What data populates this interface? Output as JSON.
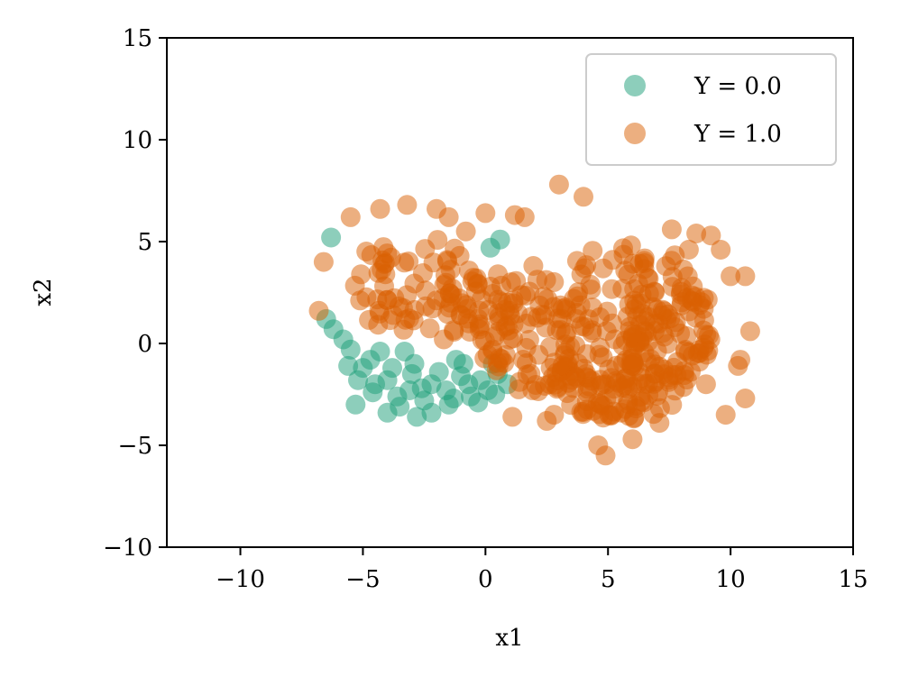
{
  "chart_data": {
    "type": "scatter",
    "title": "",
    "xlabel": "x1",
    "ylabel": "x2",
    "xlim": [
      -13,
      15
    ],
    "ylim": [
      -10,
      15
    ],
    "xticks": [
      -10,
      -5,
      0,
      5,
      10,
      15
    ],
    "yticks": [
      -10,
      -5,
      0,
      5,
      10,
      15
    ],
    "xtick_labels": [
      "−10",
      "−5",
      "0",
      "5",
      "10",
      "15"
    ],
    "ytick_labels": [
      "−10",
      "−5",
      "0",
      "5",
      "10",
      "15"
    ],
    "grid": false,
    "legend_position": "top-right",
    "series": [
      {
        "name": "Y = 0.0",
        "color": "#1b9e77",
        "alpha": 0.5,
        "points": [
          [
            -6.3,
            5.2
          ],
          [
            -6.5,
            1.2
          ],
          [
            -6.2,
            0.7
          ],
          [
            -5.8,
            0.2
          ],
          [
            -5.5,
            -0.3
          ],
          [
            -5.6,
            -1.1
          ],
          [
            -5.2,
            -1.8
          ],
          [
            -5.3,
            -3.0
          ],
          [
            -4.6,
            -2.4
          ],
          [
            -4.0,
            -3.4
          ],
          [
            -3.5,
            -3.1
          ],
          [
            -2.8,
            -3.6
          ],
          [
            -2.2,
            -3.4
          ],
          [
            -1.5,
            -3.0
          ],
          [
            -0.6,
            -2.6
          ],
          [
            -0.3,
            -2.9
          ],
          [
            0.4,
            -2.5
          ],
          [
            0.9,
            -2.0
          ],
          [
            -1.2,
            -0.8
          ],
          [
            -3.3,
            -0.4
          ],
          [
            0.6,
            5.1
          ],
          [
            0.2,
            4.7
          ],
          [
            -4.7,
            -0.8
          ],
          [
            -3.0,
            -1.5
          ],
          [
            -2.2,
            -2.0
          ],
          [
            -1.0,
            -1.6
          ],
          [
            -0.2,
            -1.8
          ],
          [
            0.3,
            -1.0
          ],
          [
            -4.0,
            -1.8
          ],
          [
            -3.6,
            -2.6
          ],
          [
            -2.5,
            -2.8
          ],
          [
            -1.6,
            -2.3
          ],
          [
            -0.7,
            -2.0
          ],
          [
            0.5,
            -1.5
          ],
          [
            -5.0,
            -1.2
          ],
          [
            -4.5,
            -2.0
          ],
          [
            -3.1,
            -2.3
          ],
          [
            -1.9,
            -1.4
          ],
          [
            -0.9,
            -1.0
          ],
          [
            0.1,
            -2.3
          ],
          [
            -2.9,
            -1.0
          ],
          [
            -3.8,
            -1.2
          ],
          [
            -4.3,
            -0.4
          ],
          [
            -1.3,
            -2.7
          ],
          [
            -2.6,
            -2.2
          ]
        ]
      },
      {
        "name": "Y = 1.0",
        "color": "#d95f02",
        "alpha": 0.5,
        "points": [
          [
            3.0,
            7.8
          ],
          [
            4.0,
            7.2
          ],
          [
            -1.5,
            6.2
          ],
          [
            -2.0,
            6.6
          ],
          [
            -3.2,
            6.8
          ],
          [
            -4.3,
            6.6
          ],
          [
            -5.5,
            6.2
          ],
          [
            -6.6,
            4.0
          ],
          [
            -6.8,
            1.6
          ],
          [
            1.2,
            6.3
          ],
          [
            1.6,
            6.2
          ],
          [
            0.0,
            6.4
          ],
          [
            8.6,
            5.4
          ],
          [
            9.2,
            5.3
          ],
          [
            9.6,
            4.6
          ],
          [
            10.0,
            3.3
          ],
          [
            10.6,
            3.3
          ],
          [
            10.8,
            0.6
          ],
          [
            10.4,
            -0.8
          ],
          [
            10.3,
            -1.1
          ],
          [
            10.6,
            -2.7
          ],
          [
            9.8,
            -3.5
          ],
          [
            4.6,
            -5.0
          ],
          [
            4.9,
            -5.5
          ],
          [
            6.0,
            -4.7
          ],
          [
            7.1,
            -3.9
          ],
          [
            2.5,
            -3.8
          ],
          [
            1.1,
            -3.6
          ],
          [
            -1.7,
            0.2
          ],
          [
            8.3,
            4.6
          ],
          [
            7.6,
            5.6
          ],
          [
            2.8,
            -3.5
          ],
          [
            -0.8,
            5.5
          ],
          [
            9.0,
            -2.0
          ]
        ],
        "clouds": [
          {
            "cx": -3.0,
            "cy": 2.9,
            "rx": 2.8,
            "ry": 2.4
          },
          {
            "cx": 5.6,
            "cy": 0.6,
            "rx": 3.6,
            "ry": 4.4
          },
          {
            "cx": 2.0,
            "cy": 0.8,
            "rx": 2.4,
            "ry": 3.2
          },
          {
            "cx": -0.3,
            "cy": 1.8,
            "rx": 1.6,
            "ry": 2.0
          },
          {
            "cx": 7.6,
            "cy": 1.2,
            "rx": 1.8,
            "ry": 3.2
          },
          {
            "cx": 5.0,
            "cy": -2.0,
            "rx": 2.6,
            "ry": 1.8
          }
        ]
      }
    ]
  }
}
